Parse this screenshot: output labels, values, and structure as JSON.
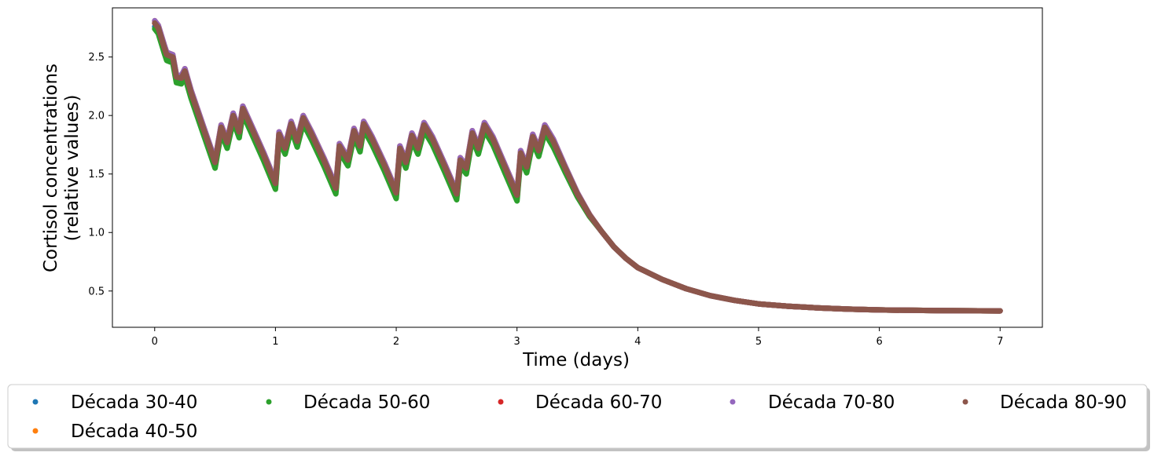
{
  "chart_data": {
    "type": "scatter",
    "xlabel": "Time (days)",
    "ylabel_lines": [
      "Cortisol concentrations",
      "(relative values)"
    ],
    "xlim": [
      -0.35,
      7.35
    ],
    "ylim": [
      0.19,
      2.92
    ],
    "x_ticks": [
      0,
      1,
      2,
      3,
      4,
      5,
      6,
      7
    ],
    "y_ticks": [
      0.5,
      1.0,
      1.5,
      2.0,
      2.5
    ],
    "x_tick_labels": [
      "0",
      "1",
      "2",
      "3",
      "4",
      "5",
      "6",
      "7"
    ],
    "y_tick_labels": [
      "0.5",
      "1.0",
      "1.5",
      "2.0",
      "2.5"
    ],
    "legend_location": "below plot, framed",
    "series": [
      {
        "name": "Década 30-40",
        "color": "#1f77b4",
        "offset": -0.03
      },
      {
        "name": "Década 40-50",
        "color": "#ff7f0e",
        "offset": 0.02
      },
      {
        "name": "Década 50-60",
        "color": "#2ca02c",
        "offset": -0.05
      },
      {
        "name": "Década 60-70",
        "color": "#d62728",
        "offset": 0.0
      },
      {
        "name": "Década 70-80",
        "color": "#9467bd",
        "offset": 0.02
      },
      {
        "name": "Década 80-90",
        "color": "#8c564b",
        "offset": 0.0
      }
    ],
    "base_curve": [
      [
        0.0,
        2.79
      ],
      [
        0.03,
        2.75
      ],
      [
        0.08,
        2.58
      ],
      [
        0.1,
        2.52
      ],
      [
        0.15,
        2.5
      ],
      [
        0.18,
        2.33
      ],
      [
        0.22,
        2.32
      ],
      [
        0.25,
        2.38
      ],
      [
        0.3,
        2.2
      ],
      [
        0.4,
        1.9
      ],
      [
        0.5,
        1.6
      ],
      [
        0.55,
        1.9
      ],
      [
        0.6,
        1.77
      ],
      [
        0.65,
        2.0
      ],
      [
        0.7,
        1.86
      ],
      [
        0.73,
        2.06
      ],
      [
        0.8,
        1.9
      ],
      [
        0.9,
        1.67
      ],
      [
        1.0,
        1.42
      ],
      [
        1.03,
        1.84
      ],
      [
        1.08,
        1.72
      ],
      [
        1.13,
        1.93
      ],
      [
        1.18,
        1.78
      ],
      [
        1.23,
        1.98
      ],
      [
        1.3,
        1.84
      ],
      [
        1.4,
        1.62
      ],
      [
        1.5,
        1.38
      ],
      [
        1.53,
        1.74
      ],
      [
        1.6,
        1.62
      ],
      [
        1.65,
        1.87
      ],
      [
        1.7,
        1.74
      ],
      [
        1.73,
        1.93
      ],
      [
        1.8,
        1.8
      ],
      [
        1.9,
        1.58
      ],
      [
        2.0,
        1.34
      ],
      [
        2.03,
        1.72
      ],
      [
        2.08,
        1.6
      ],
      [
        2.13,
        1.83
      ],
      [
        2.18,
        1.72
      ],
      [
        2.23,
        1.92
      ],
      [
        2.3,
        1.8
      ],
      [
        2.4,
        1.57
      ],
      [
        2.5,
        1.33
      ],
      [
        2.53,
        1.62
      ],
      [
        2.58,
        1.55
      ],
      [
        2.63,
        1.85
      ],
      [
        2.68,
        1.72
      ],
      [
        2.73,
        1.92
      ],
      [
        2.8,
        1.8
      ],
      [
        2.9,
        1.56
      ],
      [
        3.0,
        1.32
      ],
      [
        3.03,
        1.68
      ],
      [
        3.08,
        1.56
      ],
      [
        3.13,
        1.82
      ],
      [
        3.18,
        1.7
      ],
      [
        3.23,
        1.9
      ],
      [
        3.3,
        1.78
      ],
      [
        3.4,
        1.55
      ],
      [
        3.5,
        1.33
      ],
      [
        3.6,
        1.15
      ],
      [
        3.7,
        1.01
      ],
      [
        3.8,
        0.88
      ],
      [
        3.9,
        0.78
      ],
      [
        4.0,
        0.7
      ],
      [
        4.2,
        0.6
      ],
      [
        4.4,
        0.52
      ],
      [
        4.6,
        0.46
      ],
      [
        4.8,
        0.42
      ],
      [
        5.0,
        0.39
      ],
      [
        5.25,
        0.37
      ],
      [
        5.5,
        0.355
      ],
      [
        5.75,
        0.345
      ],
      [
        6.0,
        0.338
      ],
      [
        6.5,
        0.332
      ],
      [
        7.0,
        0.33
      ]
    ]
  }
}
